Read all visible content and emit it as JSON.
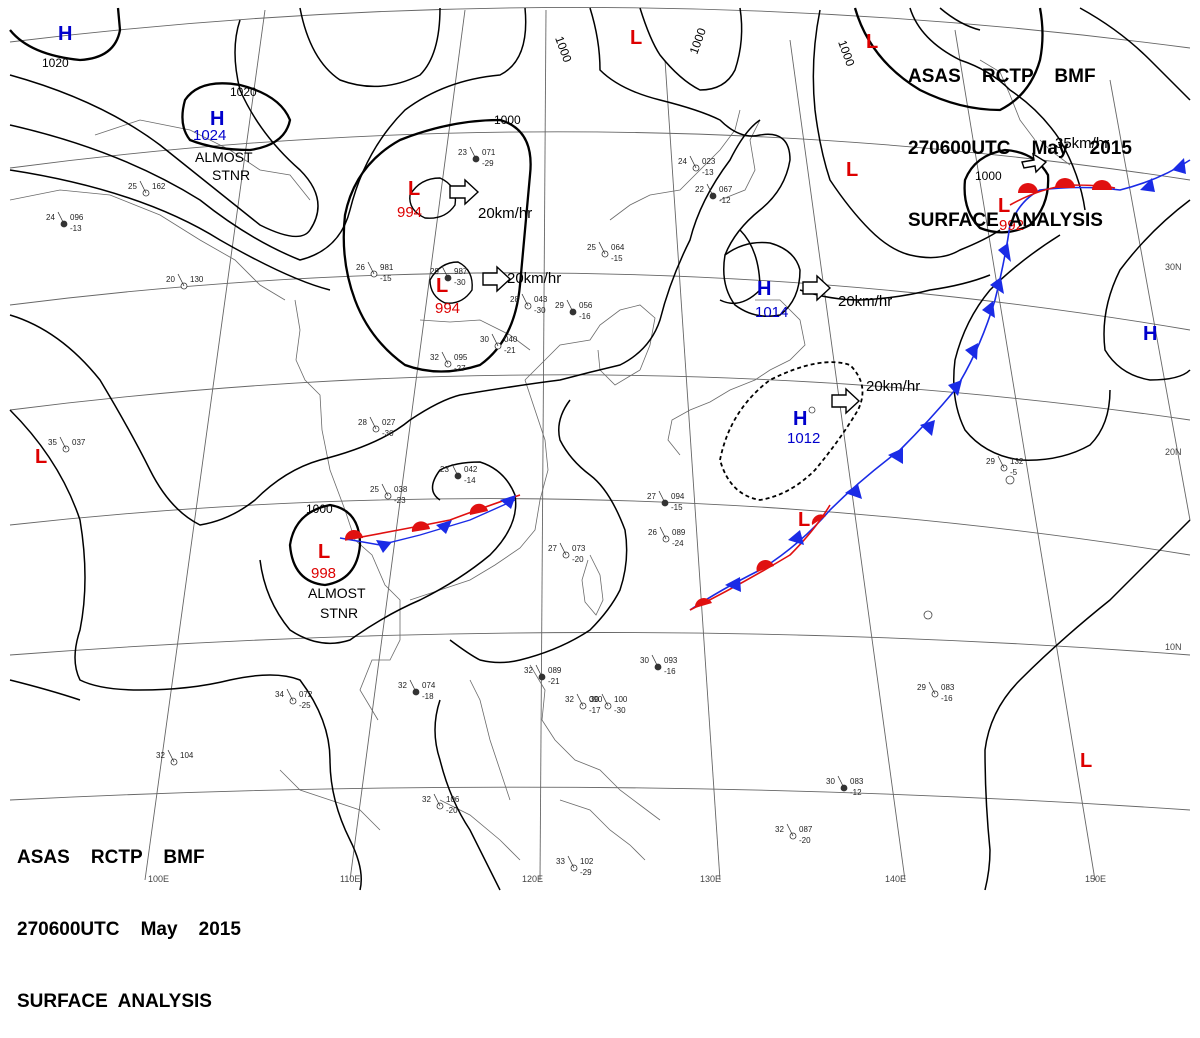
{
  "header": {
    "line1": "ASAS    RCTP    BMF",
    "line2": "270600UTC    May    2015",
    "line3": "SURFACE  ANALYSIS"
  },
  "colors": {
    "high": "#0000cc",
    "low": "#dd0000",
    "cold_front": "#1a2be6",
    "warm_front": "#e01010",
    "isobar": "#000000",
    "grid": "#555555"
  },
  "graticule": {
    "lat_labels": [
      "30N",
      "20N",
      "10N"
    ],
    "lon_labels": [
      "100E",
      "110E",
      "120E",
      "130E",
      "140E",
      "150E"
    ]
  },
  "isobars": [
    "1000",
    "1000",
    "1000",
    "1000",
    "1000",
    "1020",
    "1020"
  ],
  "pressure_systems": [
    {
      "type": "H",
      "value": "1024",
      "note": "ALMOST STNR"
    },
    {
      "type": "H",
      "value": ""
    },
    {
      "type": "H",
      "value": "1014"
    },
    {
      "type": "H",
      "value": "1012"
    },
    {
      "type": "H",
      "value": ""
    },
    {
      "type": "L",
      "value": "994"
    },
    {
      "type": "L",
      "value": "994"
    },
    {
      "type": "L",
      "value": "998",
      "note": "ALMOST STNR"
    },
    {
      "type": "L",
      "value": "992"
    },
    {
      "type": "L",
      "value": ""
    },
    {
      "type": "L",
      "value": ""
    },
    {
      "type": "L",
      "value": ""
    },
    {
      "type": "L",
      "value": ""
    },
    {
      "type": "L",
      "value": ""
    },
    {
      "type": "L",
      "value": ""
    }
  ],
  "motion_vectors": [
    "20km/hr",
    "20km/hr",
    "20km/hr",
    "20km/hr",
    "35km/hr"
  ],
  "stations": [
    {
      "t": "23",
      "p": "071",
      "d": "-29"
    },
    {
      "t": "25",
      "p": "064",
      "d": "-15"
    },
    {
      "t": "28",
      "p": "043",
      "d": "-30"
    },
    {
      "t": "29",
      "p": "056",
      "d": "-16"
    },
    {
      "t": "30",
      "p": "040",
      "d": "-21"
    },
    {
      "t": "28",
      "p": "027",
      "d": "-30"
    },
    {
      "t": "23",
      "p": "042",
      "d": "-14"
    },
    {
      "t": "25",
      "p": "038",
      "d": "-23"
    },
    {
      "t": "27",
      "p": "073",
      "d": "-20"
    },
    {
      "t": "27",
      "p": "094",
      "d": "-15"
    },
    {
      "t": "26",
      "p": "089",
      "d": "-24"
    },
    {
      "t": "29",
      "p": "132",
      "d": "-5"
    },
    {
      "t": "30",
      "p": "093",
      "d": "-16"
    },
    {
      "t": "29",
      "p": "083",
      "d": "-16"
    },
    {
      "t": "34",
      "p": "072",
      "d": "-25"
    },
    {
      "t": "32",
      "p": "074",
      "d": "-18"
    },
    {
      "t": "32",
      "p": "106",
      "d": "-20"
    },
    {
      "t": "32",
      "p": "087",
      "d": "-20"
    },
    {
      "t": "30",
      "p": "083",
      "d": "-12"
    },
    {
      "t": "33",
      "p": "102",
      "d": "-29"
    },
    {
      "t": "24",
      "p": "023",
      "d": "-13"
    },
    {
      "t": "22",
      "p": "067",
      "d": "-12"
    },
    {
      "t": "35",
      "p": "037",
      "d": ""
    },
    {
      "t": "26",
      "p": "981",
      "d": "-15"
    },
    {
      "t": "29",
      "p": "987",
      "d": "-30"
    },
    {
      "t": "32",
      "p": "095",
      "d": "-27"
    },
    {
      "t": "25",
      "p": "162",
      "d": ""
    },
    {
      "t": "24",
      "p": "096",
      "d": "-13"
    },
    {
      "t": "20",
      "p": "130",
      "d": ""
    },
    {
      "t": "32",
      "p": "104",
      "d": ""
    },
    {
      "t": "32",
      "p": "089",
      "d": "-21"
    },
    {
      "t": "30",
      "p": "100",
      "d": "-30"
    },
    {
      "t": "32",
      "p": "090",
      "d": "-17"
    }
  ]
}
